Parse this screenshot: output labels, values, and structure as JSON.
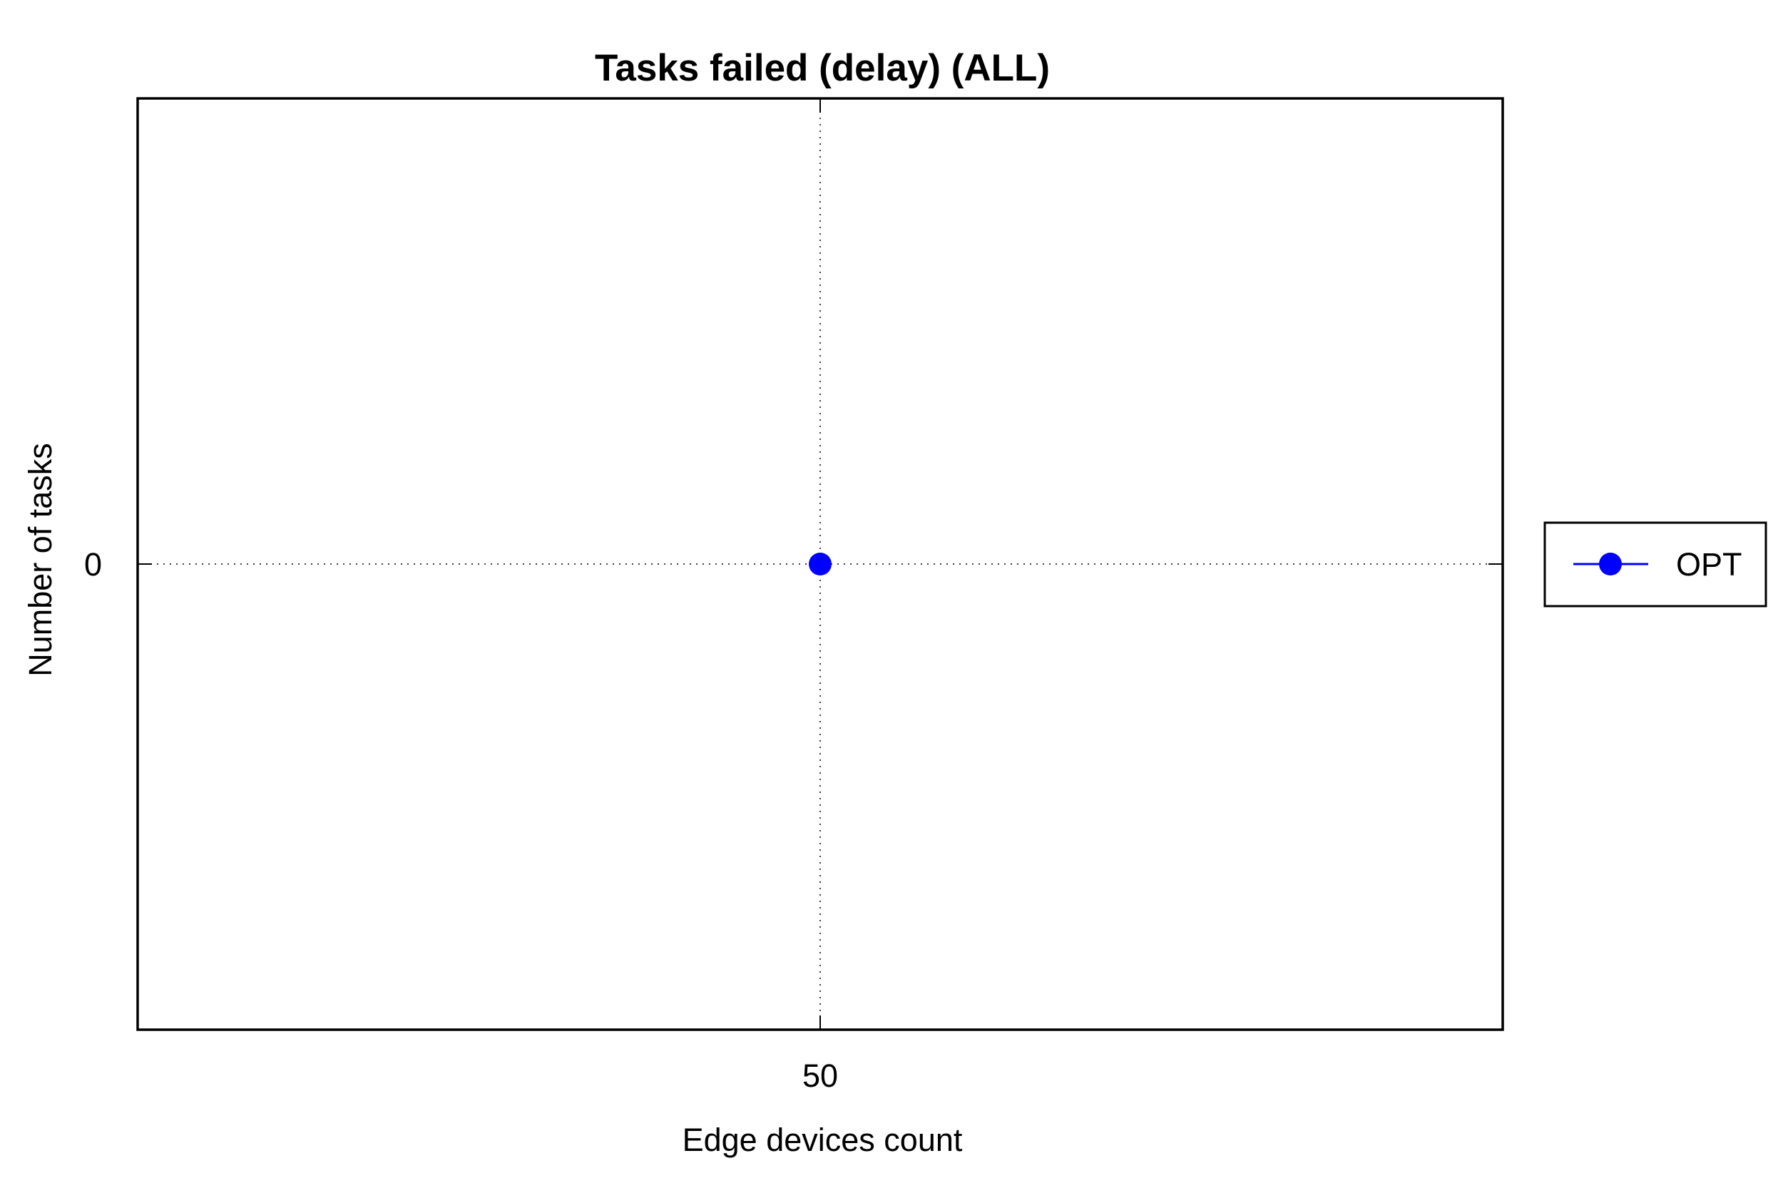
{
  "chart_data": {
    "type": "line",
    "title": "Tasks failed (delay) (ALL)",
    "xlabel": "Edge devices count",
    "ylabel": "Number of tasks",
    "x": [
      50
    ],
    "x_tick_labels": [
      "50"
    ],
    "y_tick_labels": [
      "0"
    ],
    "y_ticks": [
      0
    ],
    "xlim": [
      49,
      51
    ],
    "ylim": [
      -1,
      1
    ],
    "grid": true,
    "legend_position": "right",
    "series": [
      {
        "name": "OPT",
        "x": [
          50
        ],
        "values": [
          0
        ],
        "color": "#0000ff",
        "marker": "circle"
      }
    ]
  }
}
